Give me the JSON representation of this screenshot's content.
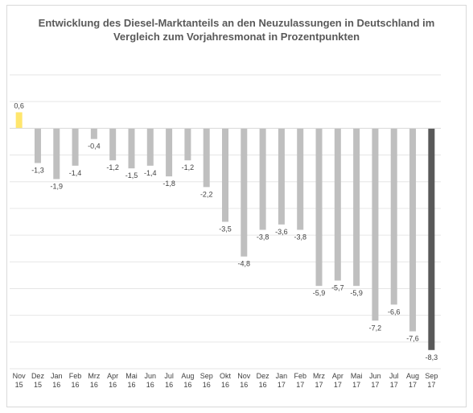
{
  "chart_data": {
    "type": "bar",
    "title_lines": [
      "Entwicklung des Diesel-Marktanteils an den Neuzulassungen in Deutschland im",
      "Vergleich zum Vorjahresmonat in Prozentpunkten"
    ],
    "categories": [
      [
        "Nov",
        "15"
      ],
      [
        "Dez",
        "15"
      ],
      [
        "Jan",
        "16"
      ],
      [
        "Feb",
        "16"
      ],
      [
        "Mrz",
        "16"
      ],
      [
        "Apr",
        "16"
      ],
      [
        "Mai",
        "16"
      ],
      [
        "Jun",
        "16"
      ],
      [
        "Jul",
        "16"
      ],
      [
        "Aug",
        "16"
      ],
      [
        "Sep",
        "16"
      ],
      [
        "Okt",
        "16"
      ],
      [
        "Nov",
        "16"
      ],
      [
        "Dez",
        "16"
      ],
      [
        "Jan",
        "17"
      ],
      [
        "Feb",
        "17"
      ],
      [
        "Mrz",
        "17"
      ],
      [
        "Apr",
        "17"
      ],
      [
        "Mai",
        "17"
      ],
      [
        "Jun",
        "17"
      ],
      [
        "Jul",
        "17"
      ],
      [
        "Aug",
        "17"
      ],
      [
        "Sep",
        "17"
      ]
    ],
    "values": [
      0.6,
      -1.3,
      -1.9,
      -1.4,
      -0.4,
      -1.2,
      -1.5,
      -1.4,
      -1.8,
      -1.2,
      -2.2,
      -3.5,
      -4.8,
      -3.8,
      -3.6,
      -3.8,
      -5.9,
      -5.7,
      -5.9,
      -7.2,
      -6.6,
      -7.6,
      -8.3
    ],
    "data_labels": [
      "0,6",
      "-1,3",
      "-1,9",
      "-1,4",
      "-0,4",
      "-1,2",
      "-1,5",
      "-1,4",
      "-1,8",
      "-1,2",
      "-2,2",
      "-3,5",
      "-4,8",
      "-3,8",
      "-3,6",
      "-3,8",
      "-5,9",
      "-5,7",
      "-5,9",
      "-7,2",
      "-6,6",
      "-7,6",
      "-8,3"
    ],
    "bar_colors": [
      "#ffe66d",
      "#bfbfbf",
      "#bfbfbf",
      "#bfbfbf",
      "#bfbfbf",
      "#bfbfbf",
      "#bfbfbf",
      "#bfbfbf",
      "#bfbfbf",
      "#bfbfbf",
      "#bfbfbf",
      "#bfbfbf",
      "#bfbfbf",
      "#bfbfbf",
      "#bfbfbf",
      "#bfbfbf",
      "#bfbfbf",
      "#bfbfbf",
      "#bfbfbf",
      "#bfbfbf",
      "#bfbfbf",
      "#bfbfbf",
      "#595959"
    ],
    "ylim": [
      -9,
      2
    ],
    "gridlines": true,
    "gridline_step": 1,
    "legend": "none"
  }
}
